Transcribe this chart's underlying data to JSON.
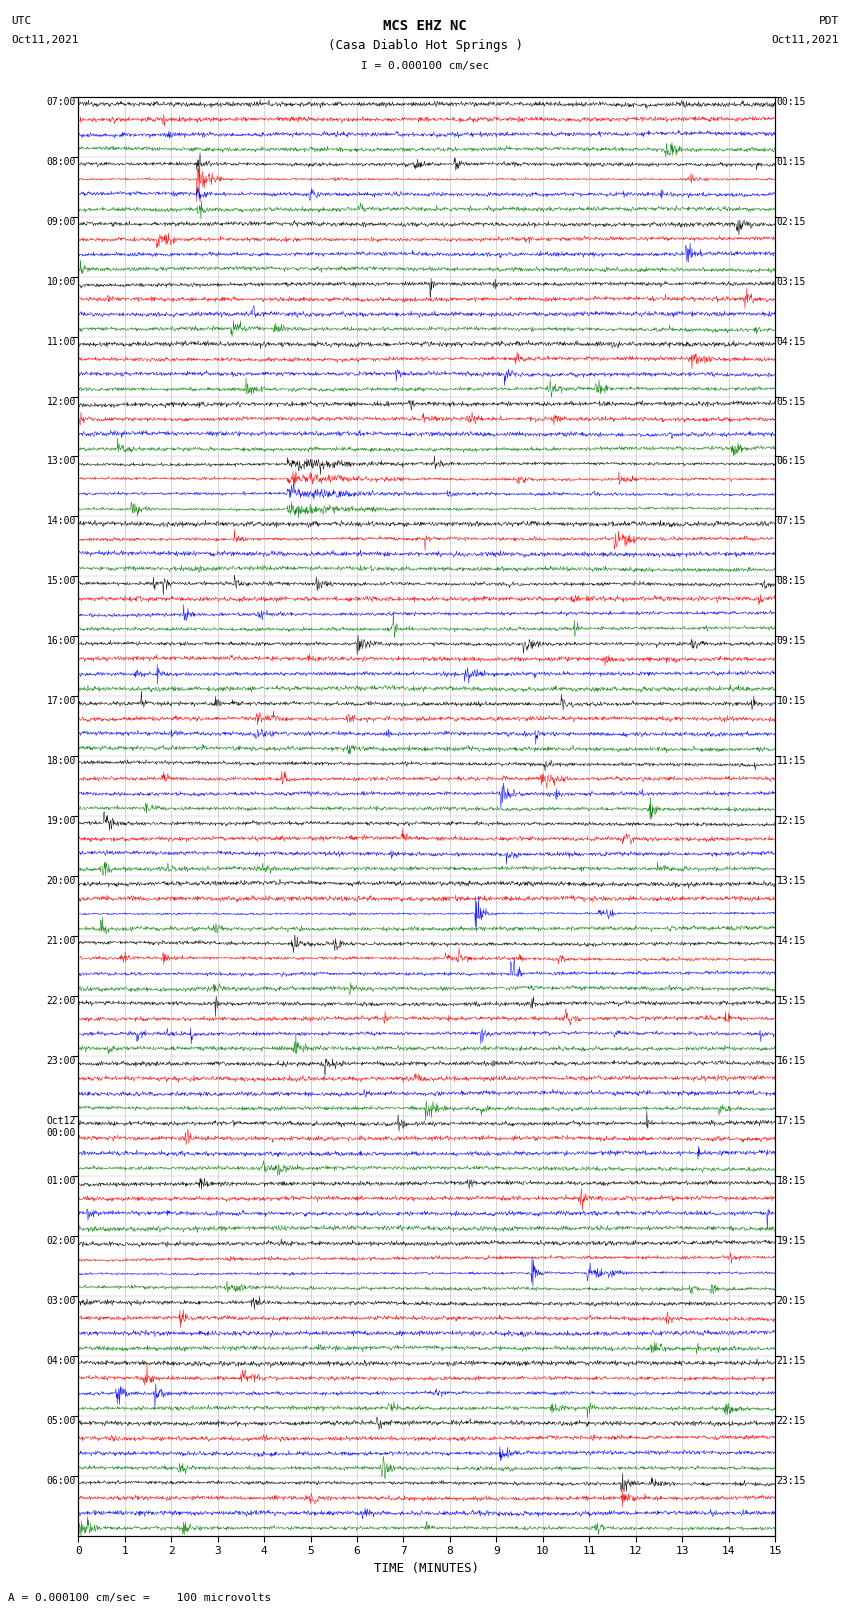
{
  "title_line1": "MCS EHZ NC",
  "title_line2": "(Casa Diablo Hot Springs )",
  "scale_label": "= 0.000100 cm/sec",
  "bottom_label": "A = 0.000100 cm/sec =    100 microvolts",
  "xlabel": "TIME (MINUTES)",
  "left_header_line1": "UTC",
  "left_header_line2": "Oct11,2021",
  "right_header_line1": "PDT",
  "right_header_line2": "Oct11,2021",
  "left_times": [
    "07:00",
    "08:00",
    "09:00",
    "10:00",
    "11:00",
    "12:00",
    "13:00",
    "14:00",
    "15:00",
    "16:00",
    "17:00",
    "18:00",
    "19:00",
    "20:00",
    "21:00",
    "22:00",
    "23:00",
    "Oct12\n00:00",
    "01:00",
    "02:00",
    "03:00",
    "04:00",
    "05:00",
    "06:00"
  ],
  "right_times": [
    "00:15",
    "01:15",
    "02:15",
    "03:15",
    "04:15",
    "05:15",
    "06:15",
    "07:15",
    "08:15",
    "09:15",
    "10:15",
    "11:15",
    "12:15",
    "13:15",
    "14:15",
    "15:15",
    "16:15",
    "17:15",
    "18:15",
    "19:15",
    "20:15",
    "21:15",
    "22:15",
    "23:15"
  ],
  "trace_colors": [
    "black",
    "red",
    "blue",
    "green"
  ],
  "n_hours": 24,
  "traces_per_hour": 4,
  "bg_color": "white",
  "xlim": [
    0,
    15
  ],
  "xticks": [
    0,
    1,
    2,
    3,
    4,
    5,
    6,
    7,
    8,
    9,
    10,
    11,
    12,
    13,
    14,
    15
  ],
  "noise_base": 0.28,
  "amplitude_by_hour": [
    0.5,
    1.8,
    2.5,
    2.8,
    2.6,
    2.4,
    3.5,
    5.5,
    2.2,
    1.5,
    1.2,
    1.0,
    1.0,
    1.0,
    1.2,
    1.0,
    1.0,
    1.0,
    1.0,
    1.0,
    1.0,
    0.8,
    0.8,
    0.8
  ]
}
